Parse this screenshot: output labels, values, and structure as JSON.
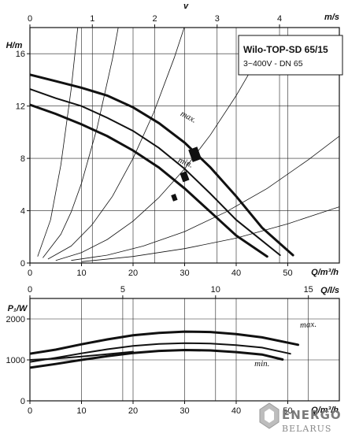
{
  "chart_data": [
    {
      "type": "line",
      "name": "head-curve",
      "title": "Wilo-TOP-SD 65/15",
      "subtitle": "3~400V - DN 65",
      "ylabel": "H/m",
      "xlabel": "Q/m³/h",
      "top_axis_label": "v",
      "top_axis_unit": "m/s",
      "xlim": [
        0,
        60
      ],
      "ylim": [
        0,
        18
      ],
      "x_ticks": [
        0,
        10,
        20,
        30,
        40,
        50
      ],
      "y_ticks": [
        0,
        4,
        8,
        12,
        16
      ],
      "top_ticks": [
        0,
        1,
        2,
        3,
        4
      ],
      "top_axis_per_x": 12.1,
      "grid": true,
      "series": [
        {
          "name": "max.",
          "x": [
            0,
            5,
            10,
            15,
            20,
            25,
            30,
            35,
            40,
            45,
            51
          ],
          "y": [
            14.4,
            13.9,
            13.4,
            12.8,
            11.9,
            10.7,
            9.2,
            7.3,
            5.1,
            2.7,
            0.6
          ]
        },
        {
          "x": [
            0,
            5,
            10,
            15,
            20,
            25,
            30,
            35,
            40,
            48.5
          ],
          "y": [
            13.3,
            12.6,
            12.0,
            11.1,
            10.1,
            8.8,
            7.2,
            5.3,
            3.3,
            0.6
          ]
        },
        {
          "name": "min.",
          "x": [
            0,
            5,
            10,
            15,
            20,
            25,
            30,
            35,
            40,
            46
          ],
          "y": [
            12.1,
            11.4,
            10.6,
            9.7,
            8.6,
            7.3,
            5.7,
            3.9,
            2.1,
            0.5
          ]
        }
      ],
      "system_curves": [
        {
          "x": [
            1.5,
            4,
            6,
            8,
            10,
            12,
            14,
            16
          ],
          "y": [
            0.5,
            3.3,
            7.5,
            13.3,
            20.7,
            29.8,
            40.6,
            53
          ]
        },
        {
          "x": [
            2.5,
            6,
            8,
            10,
            13,
            16,
            19,
            22
          ],
          "y": [
            0.4,
            2.2,
            3.9,
            6.1,
            10.3,
            15.6,
            22.0,
            29.5
          ]
        },
        {
          "x": [
            3.5,
            8,
            12,
            16,
            20,
            24,
            28,
            32
          ],
          "y": [
            0.3,
            1.3,
            2.9,
            5.1,
            8.0,
            11.5,
            15.7,
            20.5
          ]
        },
        {
          "x": [
            5,
            10,
            15,
            20,
            25,
            30,
            35,
            40,
            45
          ],
          "y": [
            0.2,
            0.8,
            1.8,
            3.2,
            5.0,
            7.2,
            9.8,
            12.8,
            16.2
          ]
        },
        {
          "x": [
            8,
            15,
            22,
            30,
            38,
            46,
            54,
            60
          ],
          "y": [
            0.2,
            0.6,
            1.3,
            2.4,
            3.9,
            5.7,
            7.9,
            9.7
          ]
        },
        {
          "x": [
            10,
            20,
            30,
            40,
            50,
            60
          ],
          "y": [
            0.1,
            0.5,
            1.1,
            1.9,
            3.0,
            4.3
          ]
        }
      ],
      "max_label": "max.",
      "min_label": "min."
    },
    {
      "type": "line",
      "name": "power-curve",
      "ylabel": "P₁/W",
      "xlabel": "Q/m³/h",
      "top_axis_unit": "Q/l/s",
      "xlim": [
        0,
        60
      ],
      "ylim": [
        0,
        2500
      ],
      "x_ticks": [
        0,
        10,
        20,
        30,
        40,
        50
      ],
      "y_ticks": [
        0,
        1000,
        2000
      ],
      "top_ticks": [
        0,
        5,
        10,
        15
      ],
      "top_axis_per_x": 3.6,
      "grid": true,
      "series": [
        {
          "name": "max.",
          "x": [
            0,
            5,
            10,
            15,
            20,
            25,
            30,
            35,
            40,
            45,
            52
          ],
          "y": [
            1150,
            1250,
            1380,
            1500,
            1600,
            1660,
            1690,
            1680,
            1630,
            1550,
            1370
          ]
        },
        {
          "x": [
            0,
            5,
            10,
            15,
            20,
            25,
            30,
            35,
            40,
            45,
            50.5
          ],
          "y": [
            950,
            1050,
            1160,
            1260,
            1340,
            1390,
            1410,
            1400,
            1360,
            1300,
            1150
          ]
        },
        {
          "name": "min.",
          "x": [
            0,
            5,
            10,
            15,
            20,
            25,
            30,
            35,
            40,
            45,
            49
          ],
          "y": [
            810,
            900,
            1000,
            1090,
            1170,
            1220,
            1240,
            1230,
            1190,
            1130,
            1010
          ]
        },
        {
          "x": [
            0,
            5,
            10,
            15,
            20
          ],
          "y": [
            1000,
            1030,
            1080,
            1140,
            1200
          ]
        }
      ],
      "max_label": "max.",
      "min_label": "min."
    }
  ],
  "logo": {
    "line1": "ENERGO",
    "line2": "BELARUS"
  }
}
